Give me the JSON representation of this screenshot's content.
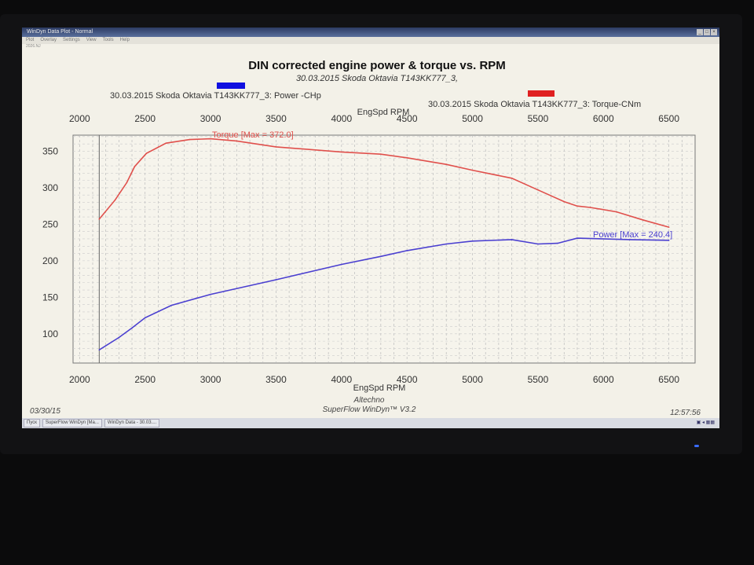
{
  "window": {
    "title": "WinDyn Data Plot - Normal",
    "menu": [
      "Plot",
      "Overlay",
      "Settings",
      "View",
      "Tools",
      "Help"
    ],
    "file_label": "2026.NJ"
  },
  "footer": {
    "date": "03/30/15",
    "time": "12:57:56",
    "company": "Altechno",
    "software": "SuperFlow WinDyn™ V3.2"
  },
  "taskbar": {
    "start": "Пуск",
    "items": [
      "SuperFlow WinDyn [Ma...",
      "WinDyn Data - 30.03...."
    ]
  },
  "chart_data": {
    "type": "line",
    "title": "DIN corrected engine power & torque vs. RPM",
    "subtitle": "30.03.2015 Skoda Oktavia T143KK777_3,",
    "xlabel": "EngSpd RPM",
    "ylabel": "",
    "xlim": [
      1950,
      6700
    ],
    "ylim": [
      60,
      372
    ],
    "x_ticks": [
      2000,
      2500,
      3000,
      3500,
      4000,
      4500,
      5000,
      5500,
      6000,
      6500
    ],
    "y_ticks": [
      100,
      150,
      200,
      250,
      300,
      350
    ],
    "grid": true,
    "colors": {
      "power": "#4a3fd0",
      "torque": "#e0504c",
      "power_legend": "#1010e0",
      "torque_legend": "#e02020"
    },
    "series": [
      {
        "name": "30.03.2015 Skoda Oktavia T143KK777_3: Power -CHp",
        "annotation": "Power  [Max = 240.4]",
        "x": [
          2150,
          2300,
          2400,
          2500,
          2700,
          3000,
          3500,
          4000,
          4300,
          4500,
          4800,
          5000,
          5300,
          5500,
          5650,
          5800,
          6200,
          6500
        ],
        "y": [
          78,
          95,
          108,
          122,
          139,
          154,
          174,
          195,
          206,
          214,
          223,
          227,
          229,
          223,
          224,
          231,
          229,
          228
        ]
      },
      {
        "name": "30.03.2015 Skoda Oktavia T143KK777_3: Torque-CNm",
        "annotation": "Torque [Max = 372.0]",
        "x": [
          2150,
          2270,
          2360,
          2420,
          2510,
          2660,
          2840,
          3000,
          3200,
          3500,
          4000,
          4300,
          4500,
          4800,
          5000,
          5300,
          5500,
          5700,
          5800,
          5900,
          6100,
          6300,
          6500
        ],
        "y": [
          257,
          283,
          307,
          329,
          347,
          361,
          366,
          367,
          364,
          356,
          349,
          346,
          341,
          332,
          324,
          313,
          297,
          281,
          275,
          273,
          267,
          256,
          246
        ]
      }
    ]
  }
}
